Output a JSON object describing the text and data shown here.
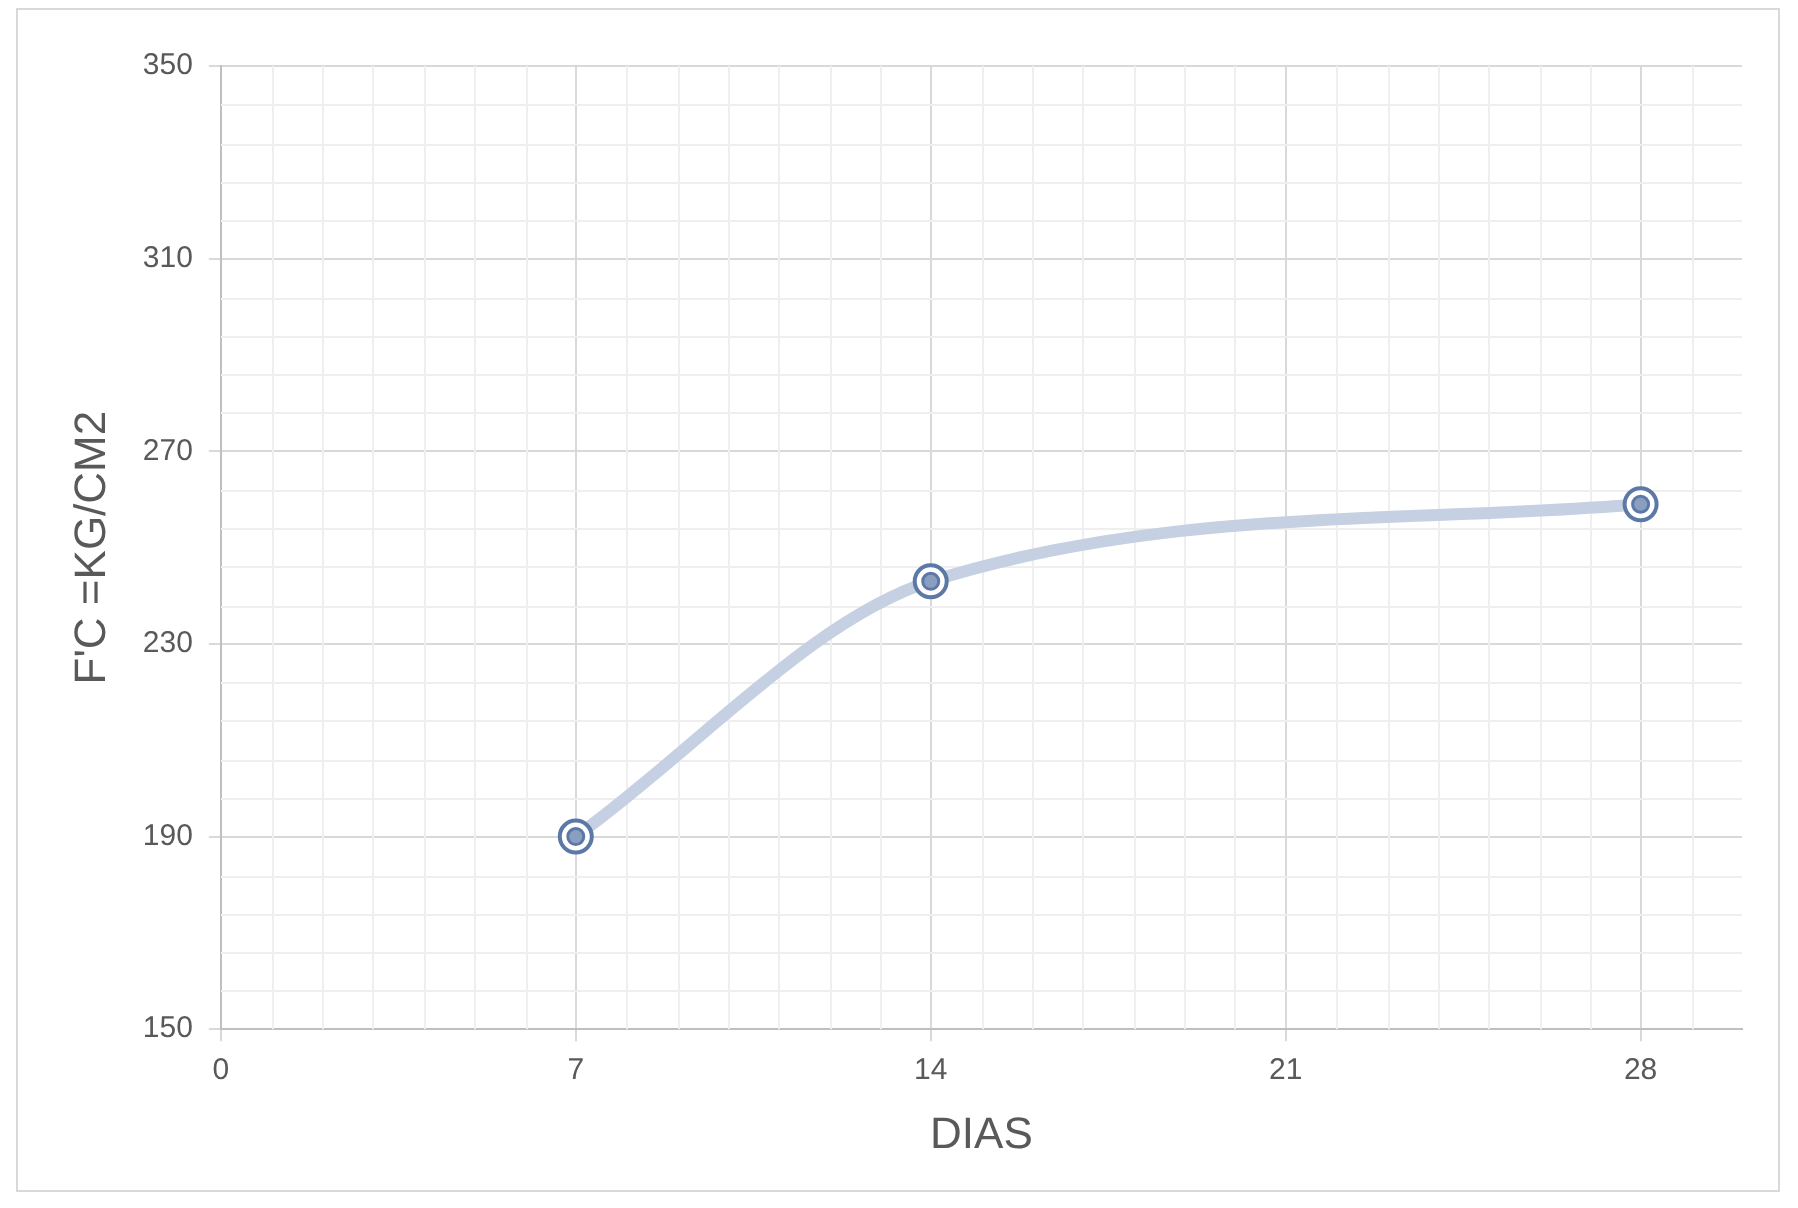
{
  "chart_data": {
    "type": "line",
    "xlabel": "DIAS",
    "ylabel": "F'C =KG/CM2",
    "x": [
      7,
      14,
      28
    ],
    "series": [
      {
        "color": "#c5d0e2",
        "values": [
          190,
          243,
          259
        ]
      }
    ],
    "xlim": [
      0,
      30
    ],
    "xticks": [
      0,
      7,
      14,
      21,
      28
    ],
    "ylim": [
      150,
      350
    ],
    "yticks": [
      150,
      190,
      230,
      270,
      310,
      350
    ],
    "grid": true,
    "legend": false,
    "marker": "circle",
    "line_style": "solid"
  }
}
